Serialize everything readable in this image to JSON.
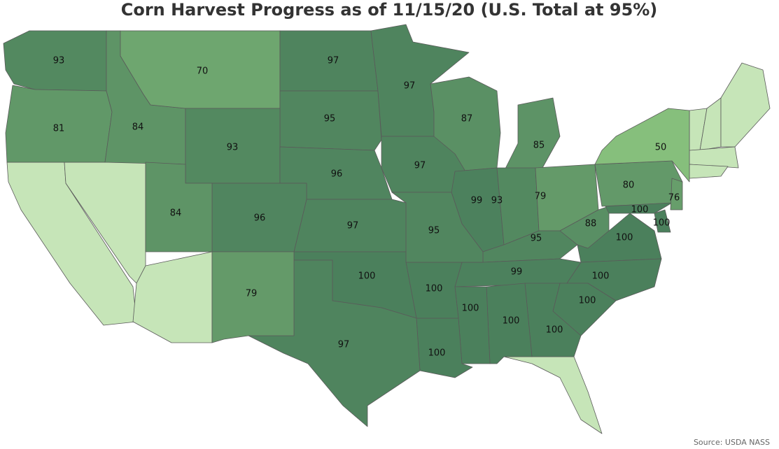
{
  "title": "Corn Harvest Progress as of 11/15/20 (U.S. Total at 95%)",
  "source": "Source: USDA NASS",
  "map": {
    "values": [
      93,
      81,
      84,
      70,
      97,
      95,
      93,
      96,
      97,
      87,
      97,
      99,
      85,
      93,
      79,
      80,
      50,
      95,
      99,
      88,
      100,
      100,
      100,
      76,
      100,
      100,
      100,
      100,
      100,
      100,
      100,
      95,
      97,
      100,
      97,
      96,
      84,
      79
    ],
    "color_low": "#86bf7c",
    "color_high": "#4b805c",
    "no_data_color": "#c6e5b8"
  }
}
